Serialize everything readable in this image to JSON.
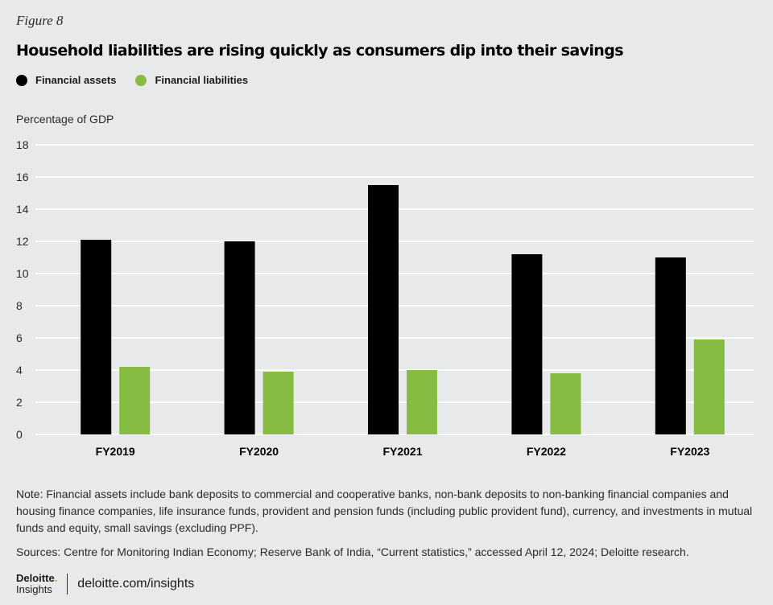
{
  "figure_label": "Figure 8",
  "colors": {
    "assets": "#000000",
    "liabilities": "#86bc41",
    "grid": "#ffffff",
    "background": "#e8e9eb"
  },
  "chart_data": {
    "type": "bar",
    "title": "Household liabilities are rising quickly as consumers dip into their savings",
    "ylabel": "Percentage of GDP",
    "xlabel": "",
    "ylim": [
      0,
      18
    ],
    "yticks": [
      0,
      2,
      4,
      6,
      8,
      10,
      12,
      14,
      16,
      18
    ],
    "categories": [
      "FY2019",
      "FY2020",
      "FY2021",
      "FY2022",
      "FY2023"
    ],
    "series": [
      {
        "name": "Financial assets",
        "values": [
          12.1,
          12.0,
          15.5,
          11.2,
          11.0
        ]
      },
      {
        "name": "Financial liabilities",
        "values": [
          4.2,
          3.9,
          4.0,
          3.8,
          5.9
        ]
      }
    ],
    "legend_position": "top-left",
    "grid": true
  },
  "note": "Note: Financial assets include bank deposits to commercial and cooperative banks, non-bank deposits to non-banking financial companies and housing finance companies, life insurance funds, provident and pension funds (including public provident fund), currency, and investments in mutual funds and equity, small savings (excluding PPF).",
  "sources": "Sources: Centre for Monitoring Indian Economy; Reserve Bank of India, “Current statistics,” accessed April 12, 2024; Deloitte research.",
  "footer": {
    "brand": "Deloitte",
    "brand_dot": ".",
    "brand_sub": "Insights",
    "site": "deloitte.com/insights"
  }
}
